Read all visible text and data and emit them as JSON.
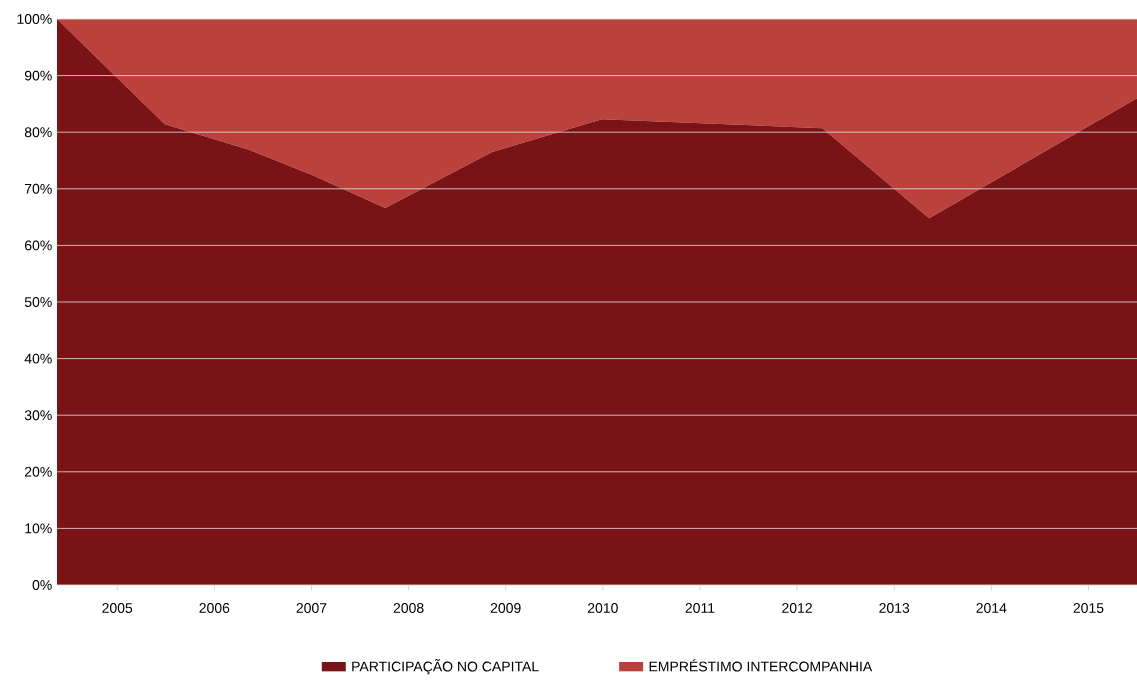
{
  "chart_data": {
    "type": "area",
    "stacked": true,
    "grid": "y",
    "legend": "bottom",
    "xlim": [
      2004.38,
      2015.5
    ],
    "ylim": [
      0,
      100
    ],
    "xticks": [
      2005,
      2006,
      2007,
      2008,
      2009,
      2010,
      2011,
      2012,
      2013,
      2014,
      2015
    ],
    "yticks": [
      {
        "value": 0,
        "label": "0%"
      },
      {
        "value": 10,
        "label": "10%"
      },
      {
        "value": 20,
        "label": "20%"
      },
      {
        "value": 30,
        "label": "30%"
      },
      {
        "value": 40,
        "label": "40%"
      },
      {
        "value": 50,
        "label": "50%"
      },
      {
        "value": 60,
        "label": "60%"
      },
      {
        "value": 70,
        "label": "70%"
      },
      {
        "value": 80,
        "label": "80%"
      },
      {
        "value": 90,
        "label": "90%"
      },
      {
        "value": 100,
        "label": "100%"
      }
    ],
    "x": [
      2004.38,
      2005.49,
      2006.34,
      2007.0,
      2007.76,
      2008.86,
      2009.99,
      2012.26,
      2013.36,
      2015.5
    ],
    "series": [
      {
        "name": "PARTICIPAÇÃO NO CAPITAL",
        "color": "#7a1316",
        "values": [
          100,
          81.4,
          77,
          72.5,
          66.6,
          76.5,
          82.3,
          80.7,
          64.8,
          86
        ]
      },
      {
        "name": "EMPRÉSTIMO INTERCOMPANHIA",
        "color": "#bb423c",
        "values": [
          0,
          18.6,
          23,
          27.5,
          33.4,
          23.5,
          17.7,
          19.3,
          35.2,
          14
        ]
      }
    ]
  }
}
